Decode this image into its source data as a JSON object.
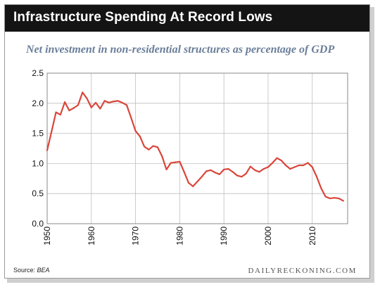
{
  "header": {
    "title": "Infrastructure Spending At Record Lows",
    "subtitle": "Net investment in non-residential structures as percentage of GDP"
  },
  "footer": {
    "source_label": "Source:",
    "source_name": "BEA",
    "brand": "DAILYRECKONING.COM"
  },
  "colors": {
    "line": "#d9463a",
    "title_bar": "#141414",
    "subtitle": "#6a7e99",
    "grid": "#bfbfbf"
  },
  "chart_data": {
    "type": "line",
    "title": "",
    "xlabel": "",
    "ylabel": "",
    "xlim": [
      1950,
      2018
    ],
    "ylim": [
      0,
      2.5
    ],
    "xticks": [
      1950,
      1960,
      1970,
      1980,
      1990,
      2000,
      2010
    ],
    "yticks": [
      0.0,
      0.5,
      1.0,
      1.5,
      2.0,
      2.5
    ],
    "ytick_labels": [
      "0.0",
      "0.5",
      "1.0",
      "1.5",
      "2.0",
      "2.5"
    ],
    "grid": true,
    "x_tick_rotation": "vertical",
    "series": [
      {
        "x": [
          1950,
          1951,
          1952,
          1953,
          1954,
          1955,
          1956,
          1957,
          1958,
          1959,
          1960,
          1961,
          1962,
          1963,
          1964,
          1965,
          1966,
          1967,
          1968,
          1969,
          1970,
          1971,
          1972,
          1973,
          1974,
          1975,
          1976,
          1977,
          1978,
          1979,
          1980,
          1981,
          1982,
          1983,
          1984,
          1985,
          1986,
          1987,
          1988,
          1989,
          1990,
          1991,
          1992,
          1993,
          1994,
          1995,
          1996,
          1997,
          1998,
          1999,
          2000,
          2001,
          2002,
          2003,
          2004,
          2005,
          2006,
          2007,
          2008,
          2009,
          2010,
          2011,
          2012,
          2013,
          2014,
          2015,
          2016,
          2017
        ],
        "values": [
          1.22,
          1.53,
          1.85,
          1.81,
          2.02,
          1.88,
          1.92,
          1.97,
          2.18,
          2.08,
          1.93,
          2.01,
          1.91,
          2.04,
          2.01,
          2.03,
          2.04,
          2.01,
          1.97,
          1.76,
          1.54,
          1.45,
          1.28,
          1.23,
          1.29,
          1.27,
          1.12,
          0.9,
          1.01,
          1.02,
          1.03,
          0.86,
          0.68,
          0.62,
          0.7,
          0.78,
          0.87,
          0.89,
          0.85,
          0.82,
          0.9,
          0.91,
          0.86,
          0.8,
          0.78,
          0.83,
          0.95,
          0.89,
          0.86,
          0.91,
          0.94,
          1.01,
          1.09,
          1.05,
          0.97,
          0.91,
          0.94,
          0.97,
          0.97,
          1.01,
          0.94,
          0.78,
          0.59,
          0.45,
          0.42,
          0.43,
          0.42,
          0.38
        ]
      }
    ]
  }
}
